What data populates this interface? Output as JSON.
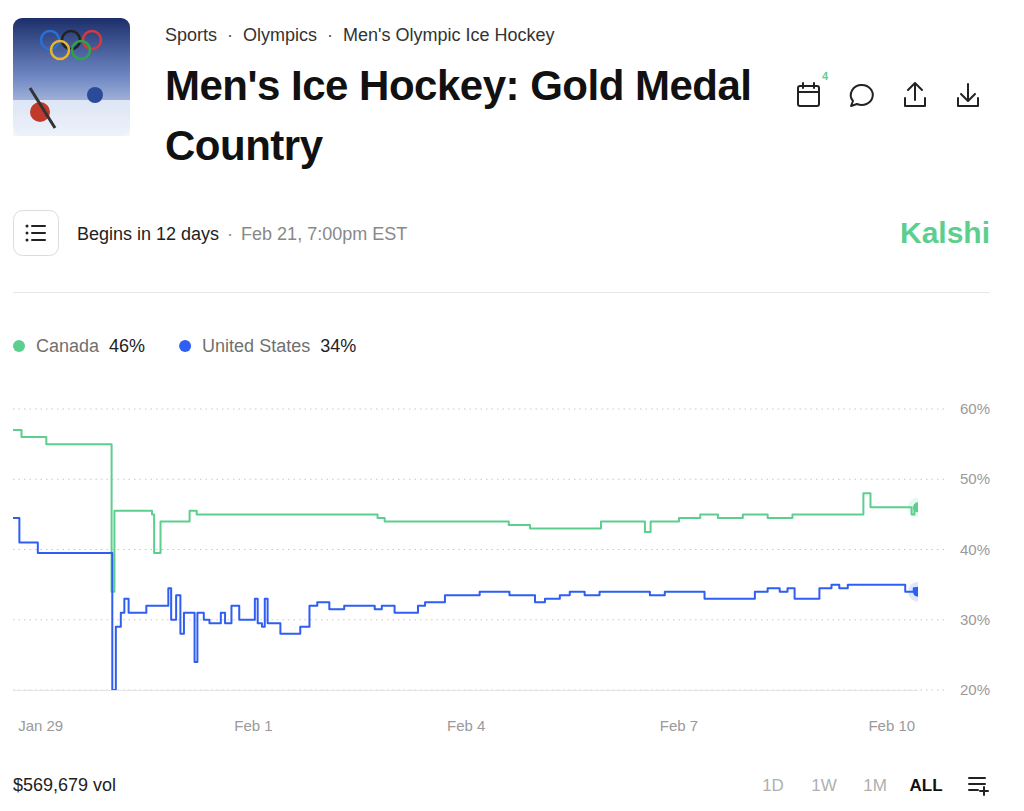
{
  "header": {
    "breadcrumb": [
      "Sports",
      "Olympics",
      "Men's Olympic Ice Hockey"
    ],
    "separator": "·",
    "title": "Men's Ice Hockey: Gold Medal Country",
    "calendar_count": 4,
    "status": "Begins in 12 days",
    "date": "Feb 21, 7:00pm EST",
    "brand": "Kalshi"
  },
  "chart_data": {
    "type": "line",
    "line_style": "step",
    "legend": "top-left",
    "grid": true,
    "series": [
      {
        "name": "Canada",
        "color": "#5ccf8f",
        "chance": 46,
        "chance_label": "46%",
        "x": [
          -0.39,
          -0.27,
          0.08,
          1.0,
          1.04,
          1.57,
          1.6,
          1.69,
          2.1,
          2.2,
          4.75,
          4.85,
          6.6,
          6.9,
          7.9,
          8.52,
          8.6,
          9.0,
          9.3,
          9.55,
          9.9,
          10.25,
          10.6,
          11.6,
          11.7,
          12.28,
          12.32,
          12.37
        ],
        "values": [
          57,
          56,
          55,
          34,
          45.5,
          45,
          39.5,
          44,
          45.5,
          45,
          44.5,
          44,
          43.5,
          43,
          44,
          42.5,
          44,
          44.5,
          45,
          44.5,
          45,
          44.5,
          45,
          48,
          46,
          45,
          46,
          46
        ]
      },
      {
        "name": "United States",
        "color": "#2f5ef2",
        "chance": 34,
        "chance_label": "34%",
        "x": [
          -0.39,
          -0.3,
          -0.04,
          1.01,
          1.06,
          1.13,
          1.18,
          1.24,
          1.49,
          1.8,
          1.84,
          1.91,
          1.97,
          2.02,
          2.17,
          2.21,
          2.3,
          2.38,
          2.54,
          2.6,
          2.69,
          2.8,
          3.02,
          3.06,
          3.12,
          3.16,
          3.2,
          3.38,
          3.66,
          3.79,
          3.9,
          4.07,
          4.28,
          4.71,
          4.81,
          4.99,
          5.32,
          5.42,
          5.7,
          6.19,
          6.61,
          6.97,
          7.11,
          7.32,
          7.46,
          7.67,
          7.88,
          8.59,
          8.8,
          9.36,
          10.07,
          10.25,
          10.42,
          10.53,
          10.63,
          10.98,
          11.15,
          11.26,
          11.38,
          12.19,
          12.31,
          12.35,
          12.37
        ],
        "values": [
          44.5,
          41,
          39.5,
          20,
          29,
          31,
          33,
          31,
          32,
          34.5,
          30,
          33.5,
          28,
          31,
          24,
          31,
          30,
          29.5,
          31,
          29.5,
          32,
          30,
          33,
          29.5,
          29,
          33,
          29.5,
          28,
          29,
          32,
          32.5,
          31.5,
          32,
          31.5,
          32,
          31,
          32,
          32.5,
          33.5,
          34,
          33.5,
          32.5,
          33,
          33.5,
          34,
          33.5,
          34,
          33.5,
          34,
          33,
          34,
          34.5,
          34,
          34.5,
          33,
          34.5,
          35,
          34.5,
          35,
          34,
          34.5,
          34,
          34
        ]
      }
    ],
    "xlim": [
      -0.39,
      12.37
    ],
    "xticks": [
      {
        "value": 0,
        "label": "Jan 29"
      },
      {
        "value": 3,
        "label": "Feb 1"
      },
      {
        "value": 6,
        "label": "Feb 4"
      },
      {
        "value": 9,
        "label": "Feb 7"
      },
      {
        "value": 12,
        "label": "Feb 10"
      }
    ],
    "ylim": [
      20,
      60
    ],
    "yticks": [
      {
        "value": 20,
        "label": "20%"
      },
      {
        "value": 30,
        "label": "30%"
      },
      {
        "value": 40,
        "label": "40%"
      },
      {
        "value": 50,
        "label": "50%"
      },
      {
        "value": 60,
        "label": "60%"
      }
    ]
  },
  "footer": {
    "volume": "$569,679 vol",
    "ranges": [
      "1D",
      "1W",
      "1M",
      "ALL"
    ],
    "active": "ALL"
  }
}
